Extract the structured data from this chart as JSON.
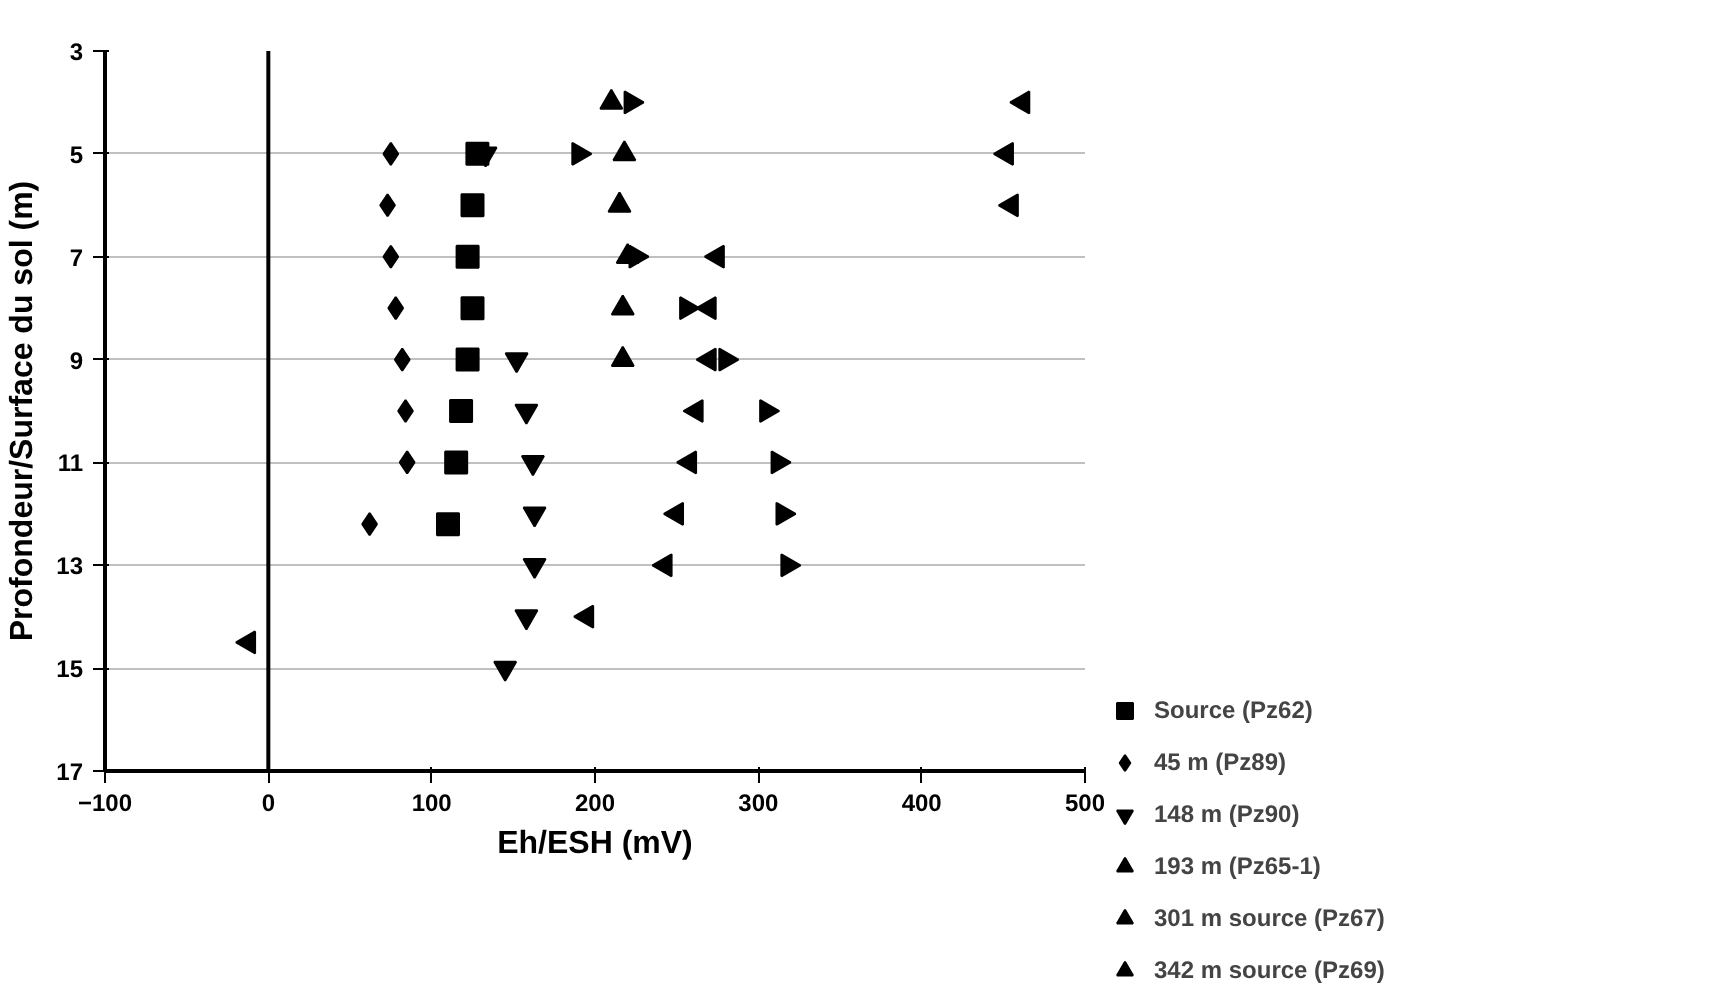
{
  "chart_data": {
    "type": "scatter",
    "xlabel": "Eh/ESH (mV)",
    "ylabel": "Profondeur/Surface du sol (m)",
    "xlim": [
      -100,
      500
    ],
    "xticks": [
      -100,
      0,
      100,
      200,
      300,
      400,
      500
    ],
    "ylim": [
      17,
      3
    ],
    "yticks": [
      3,
      5,
      7,
      9,
      11,
      13,
      15,
      17
    ],
    "grid": "y",
    "legend": "right",
    "ref_lines": [
      {
        "axis": "x",
        "value": 0,
        "color": "#000000"
      }
    ],
    "series": [
      {
        "name": "Source (Pz62)",
        "color": "#000000",
        "marker": "square",
        "x": [
          128,
          125,
          122,
          125,
          122,
          118,
          115,
          110
        ],
        "values": [
          5,
          6,
          7,
          8,
          9,
          10,
          11,
          12.2
        ]
      },
      {
        "name": "45 m (Pz89)",
        "color": "#000000",
        "marker": "diamond",
        "x": [
          75,
          73,
          75,
          78,
          82,
          84,
          85,
          62
        ],
        "values": [
          5,
          6,
          7,
          8,
          9,
          10,
          11,
          12.2
        ]
      },
      {
        "name": "148 m (Pz90)",
        "color": "#000000",
        "marker": "triangle_down",
        "x": [
          133,
          152,
          158,
          162,
          163,
          163,
          158,
          145
        ],
        "values": [
          5,
          9,
          10,
          11,
          12,
          13,
          14,
          15
        ]
      },
      {
        "name": "193 m (Pz65-1)",
        "color": "#000000",
        "marker": "triangle",
        "x": [
          210,
          218,
          215,
          220,
          217,
          217
        ],
        "values": [
          4,
          5,
          6,
          7,
          8,
          9
        ]
      },
      {
        "name": "301 m source (Pz67)",
        "color": "#000000",
        "marker": "triangle_right",
        "x": [
          222,
          190,
          225,
          256,
          280,
          305,
          312,
          315,
          318
        ],
        "values": [
          4,
          5,
          7,
          8,
          9,
          10,
          11,
          12,
          13
        ]
      },
      {
        "name": "342 m source (Pz69)",
        "color": "#000000",
        "marker": "triangle_left",
        "x": [
          462,
          452,
          455,
          275,
          270,
          270,
          262,
          258,
          250,
          243,
          195,
          -12
        ],
        "values": [
          4,
          5,
          6,
          7,
          8,
          9,
          10,
          11,
          12,
          13,
          14,
          14.5
        ]
      }
    ]
  }
}
